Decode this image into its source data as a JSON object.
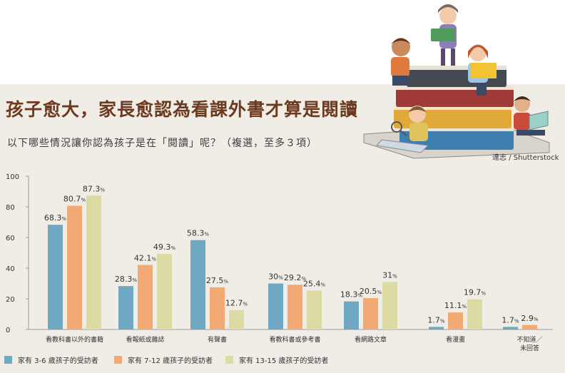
{
  "title": "孩子愈大，家長愈認為看課外書才算是閱讀",
  "subtitle": "以下哪些情況讓你認為孩子是在「閱讀」呢？（複選，至多３項）",
  "credit": "達志 / Shutterstock",
  "illustration_icon": "children-reading-on-book-stack",
  "colors": {
    "background": "#f0ede6",
    "title": "#6b3a1f",
    "series1": "#6fa8c2",
    "series2": "#f2a974",
    "series3": "#dcdba3"
  },
  "chart_data": {
    "type": "bar",
    "categories": [
      "看教科書以外的書籍",
      "看報紙或雜誌",
      "有聲書",
      "看教科書或參考書",
      "看網路文章",
      "看漫畫",
      "不知道／未回答"
    ],
    "category_labels": [
      [
        "看教科書以外的書籍"
      ],
      [
        "看報紙或雜誌"
      ],
      [
        "有聲書"
      ],
      [
        "看教科書或參考書"
      ],
      [
        "看網路文章"
      ],
      [
        "看漫畫"
      ],
      [
        "不知道／",
        "未回答"
      ]
    ],
    "series": [
      {
        "name": "家有 3-6 歲孩子的受訪者",
        "values": [
          68.3,
          28.3,
          58.3,
          30,
          18.3,
          1.7,
          1.7
        ]
      },
      {
        "name": "家有 7-12 歲孩子的受訪者",
        "values": [
          80.7,
          42.1,
          27.5,
          29.2,
          20.5,
          11.1,
          2.9
        ]
      },
      {
        "name": "家有 13-15 歲孩子的受訪者",
        "values": [
          87.3,
          49.3,
          12.7,
          25.4,
          31,
          19.7,
          null
        ]
      }
    ],
    "yticks": [
      0,
      20,
      40,
      60,
      80,
      100
    ],
    "ylim": [
      0,
      100
    ],
    "value_suffix": "%",
    "grid": false,
    "legend_position": "bottom-left"
  }
}
